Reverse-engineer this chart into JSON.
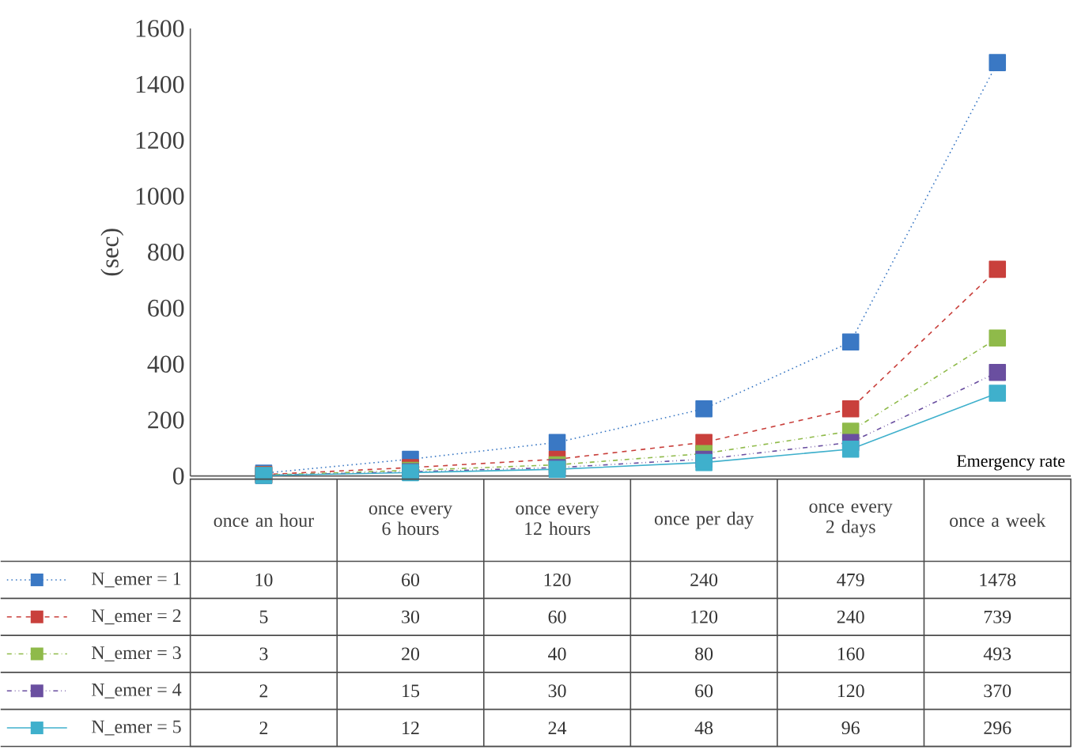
{
  "chart_data": {
    "type": "line",
    "ylabel": "(sec)",
    "xlabel": "Emergency rate",
    "categories": [
      "once an hour",
      "once every 6 hours",
      "once every 12 hours",
      "once per day",
      "once every 2 days",
      "once a week"
    ],
    "series": [
      {
        "name": "N_emer = 1",
        "color": "#3a78c4",
        "line_style": "dotted",
        "values": [
          10,
          60,
          120,
          240,
          479,
          1478
        ]
      },
      {
        "name": "N_emer = 2",
        "color": "#c9403c",
        "line_style": "dashed",
        "values": [
          5,
          30,
          60,
          120,
          240,
          739
        ]
      },
      {
        "name": "N_emer = 3",
        "color": "#8fba4a",
        "line_style": "dashdot",
        "values": [
          3,
          20,
          40,
          80,
          160,
          493
        ]
      },
      {
        "name": "N_emer = 4",
        "color": "#6a4fa0",
        "line_style": "dashdotdot",
        "values": [
          2,
          15,
          30,
          60,
          120,
          370
        ]
      },
      {
        "name": "N_emer = 5",
        "color": "#3fb0cc",
        "line_style": "solid",
        "values": [
          2,
          12,
          24,
          48,
          96,
          296
        ]
      }
    ],
    "ylim": [
      0,
      1600
    ],
    "yticks": [
      0,
      200,
      400,
      600,
      800,
      1000,
      1200,
      1400,
      1600
    ],
    "marker": "square",
    "legend": "bottom left",
    "data_labels": true
  }
}
